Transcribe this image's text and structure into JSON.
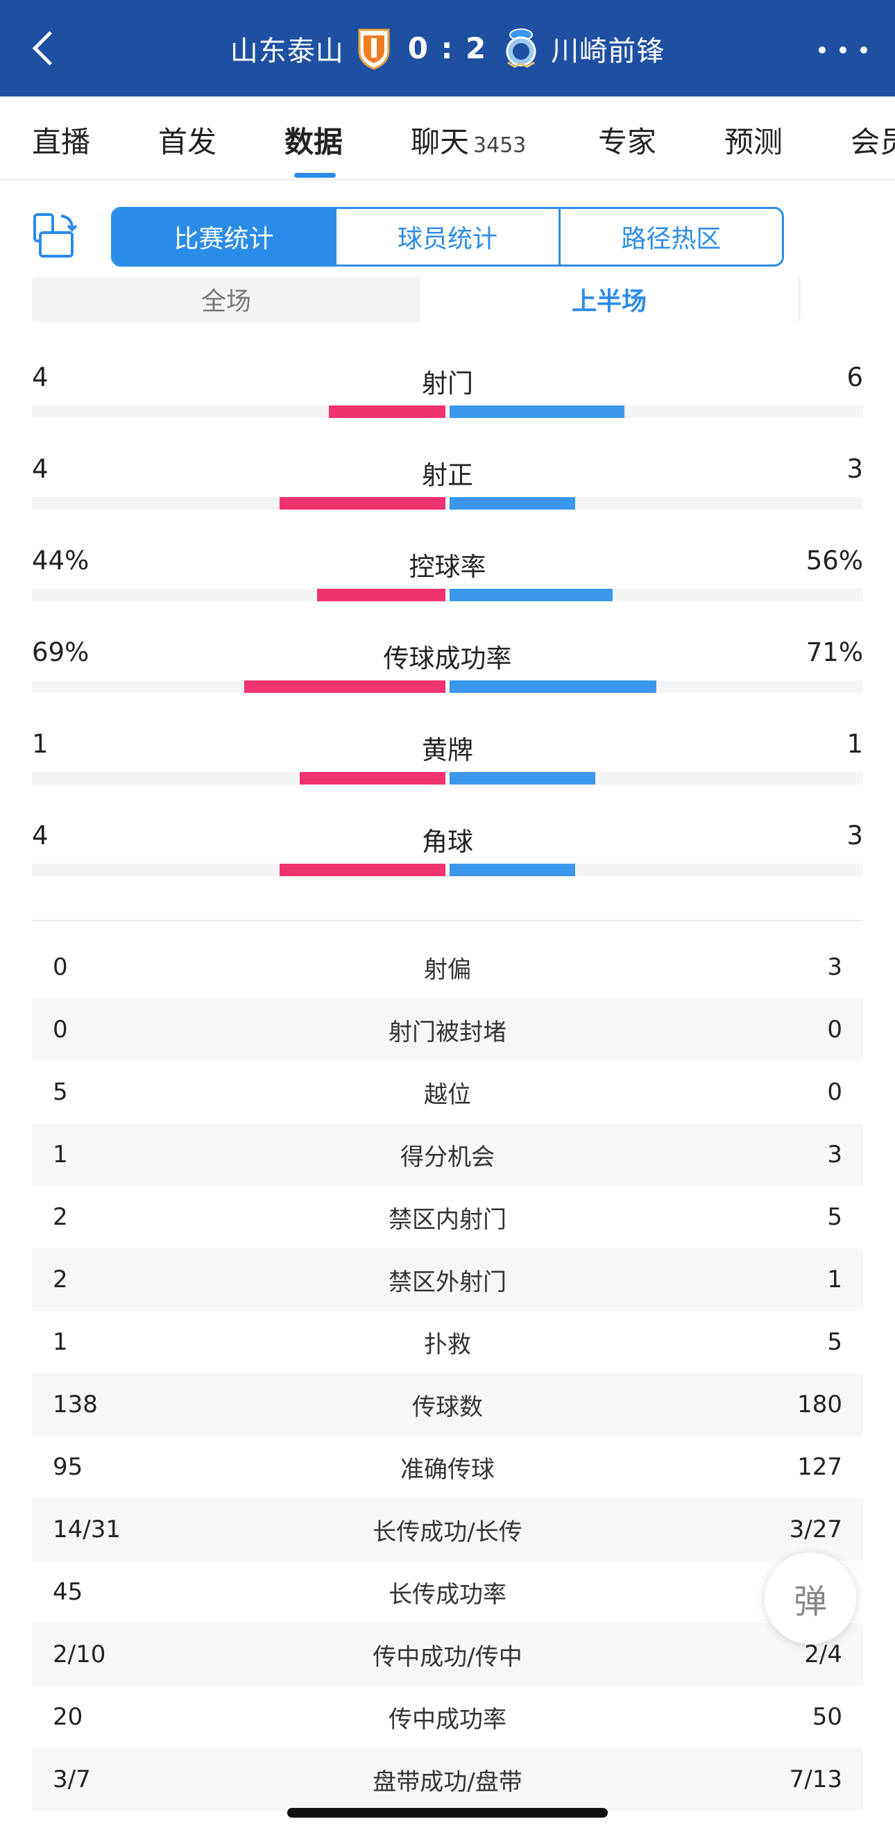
{
  "header": {
    "home_team": "山东泰山",
    "score": "0 : 2",
    "away_team": "川崎前锋"
  },
  "tabs": [
    {
      "label": "直播"
    },
    {
      "label": "首发"
    },
    {
      "label": "数据"
    },
    {
      "label": "聊天",
      "count": "3453"
    },
    {
      "label": "专家"
    },
    {
      "label": "预测"
    },
    {
      "label": "会员"
    }
  ],
  "segments": [
    "比赛统计",
    "球员统计",
    "路径热区"
  ],
  "period": {
    "full": "全场",
    "first_half": "上半场"
  },
  "colors": {
    "home": "#f0326e",
    "away": "#3a97ec",
    "header": "#1e50a2",
    "accent": "#2b8ce8"
  },
  "bar_stats": [
    {
      "name": "射门",
      "home": "4",
      "away": "6",
      "home_ratio": 0.4,
      "away_ratio": 0.6
    },
    {
      "name": "射正",
      "home": "4",
      "away": "3",
      "home_ratio": 0.57,
      "away_ratio": 0.43
    },
    {
      "name": "控球率",
      "home": "44%",
      "away": "56%",
      "home_ratio": 0.44,
      "away_ratio": 0.56
    },
    {
      "name": "传球成功率",
      "home": "69%",
      "away": "71%",
      "home_ratio": 0.69,
      "away_ratio": 0.71
    },
    {
      "name": "黄牌",
      "home": "1",
      "away": "1",
      "home_ratio": 0.5,
      "away_ratio": 0.5
    },
    {
      "name": "角球",
      "home": "4",
      "away": "3",
      "home_ratio": 0.57,
      "away_ratio": 0.43
    }
  ],
  "table_stats": [
    {
      "name": "射偏",
      "home": "0",
      "away": "3"
    },
    {
      "name": "射门被封堵",
      "home": "0",
      "away": "0"
    },
    {
      "name": "越位",
      "home": "5",
      "away": "0"
    },
    {
      "name": "得分机会",
      "home": "1",
      "away": "3"
    },
    {
      "name": "禁区内射门",
      "home": "2",
      "away": "5"
    },
    {
      "name": "禁区外射门",
      "home": "2",
      "away": "1"
    },
    {
      "name": "扑救",
      "home": "1",
      "away": "5"
    },
    {
      "name": "传球数",
      "home": "138",
      "away": "180"
    },
    {
      "name": "准确传球",
      "home": "95",
      "away": "127"
    },
    {
      "name": "长传成功/长传",
      "home": "14/31",
      "away": "3/27"
    },
    {
      "name": "长传成功率",
      "home": "45",
      "away": ""
    },
    {
      "name": "传中成功/传中",
      "home": "2/10",
      "away": "2/4"
    },
    {
      "name": "传中成功率",
      "home": "20",
      "away": "50"
    },
    {
      "name": "盘带成功/盘带",
      "home": "3/7",
      "away": "7/13"
    }
  ],
  "float_button": "弹"
}
